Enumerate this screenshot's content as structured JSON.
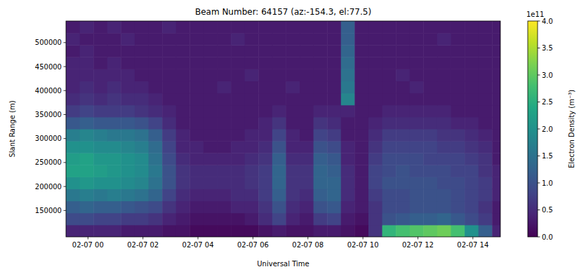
{
  "chart_data": {
    "type": "heatmap",
    "title": "Beam Number: 64157 (az:-154.3, el:77.5)",
    "x_label": "Universal Time",
    "y_label": "Slant Range (m)",
    "colorbar_label": "Electron Density (m⁻³)",
    "colorbar_offset": "1e11",
    "x_edges": [
      -0.8,
      -0.3,
      0.2,
      0.7,
      1.2,
      1.7,
      2.2,
      2.7,
      3.2,
      3.7,
      4.2,
      4.7,
      5.2,
      5.7,
      6.2,
      6.7,
      7.2,
      7.7,
      8.2,
      8.7,
      9.2,
      9.7,
      10.2,
      10.7,
      11.2,
      11.7,
      12.2,
      12.7,
      13.2,
      13.7,
      14.2,
      14.7,
      15.2
    ],
    "y_edges": [
      95000,
      120000,
      145000,
      170000,
      195000,
      220000,
      245000,
      270000,
      295000,
      320000,
      345000,
      370000,
      395000,
      420000,
      445000,
      470000,
      495000,
      520000,
      545000
    ],
    "cells": [
      [
        0.4,
        0.4,
        0.4,
        0.4,
        0.3,
        0.3,
        0.3,
        0.2,
        0.2,
        0.1,
        0.1,
        0.1,
        0.1,
        0.1,
        0.2,
        0.3,
        0.2,
        0.2,
        0.3,
        0.3,
        0.2,
        0.1,
        0.6,
        2.6,
        2.8,
        2.9,
        3.0,
        3.1,
        2.8,
        2.0,
        1.2,
        0.4
      ],
      [
        0.9,
        0.9,
        0.8,
        0.8,
        0.7,
        0.7,
        0.6,
        0.4,
        0.3,
        0.2,
        0.2,
        0.2,
        0.2,
        0.3,
        0.5,
        0.8,
        0.4,
        0.3,
        0.7,
        0.8,
        0.3,
        0.2,
        0.6,
        1.0,
        1.1,
        1.2,
        1.2,
        1.3,
        1.1,
        0.9,
        0.7,
        0.3
      ],
      [
        1.2,
        1.3,
        1.2,
        1.2,
        1.1,
        1.0,
        0.9,
        0.6,
        0.4,
        0.3,
        0.3,
        0.3,
        0.4,
        0.4,
        0.6,
        1.0,
        0.5,
        0.4,
        1.0,
        1.1,
        0.4,
        0.3,
        0.6,
        0.9,
        0.9,
        1.0,
        1.0,
        1.0,
        0.9,
        0.8,
        0.6,
        0.3
      ],
      [
        1.6,
        1.7,
        1.6,
        1.7,
        1.6,
        1.5,
        1.3,
        0.8,
        0.5,
        0.4,
        0.4,
        0.4,
        0.5,
        0.5,
        0.7,
        1.2,
        0.6,
        0.5,
        1.2,
        1.3,
        0.5,
        0.3,
        0.7,
        0.9,
        0.9,
        1.0,
        1.0,
        1.0,
        0.9,
        0.8,
        0.7,
        0.4
      ],
      [
        2.0,
        2.1,
        2.0,
        2.0,
        1.9,
        1.8,
        1.5,
        1.0,
        0.6,
        0.5,
        0.5,
        0.5,
        0.5,
        0.6,
        0.7,
        1.3,
        0.6,
        0.6,
        1.3,
        1.3,
        0.5,
        0.3,
        0.8,
        1.0,
        1.0,
        1.0,
        1.0,
        0.9,
        0.9,
        0.8,
        0.7,
        0.4
      ],
      [
        2.3,
        2.3,
        2.2,
        2.1,
        2.0,
        1.9,
        1.6,
        1.0,
        0.6,
        0.5,
        0.5,
        0.5,
        0.5,
        0.6,
        0.7,
        1.3,
        0.6,
        0.6,
        1.3,
        1.2,
        0.5,
        0.3,
        0.8,
        0.9,
        1.0,
        0.9,
        0.9,
        0.9,
        0.8,
        0.8,
        0.6,
        0.4
      ],
      [
        2.2,
        2.3,
        2.1,
        2.1,
        2.0,
        1.9,
        1.5,
        0.9,
        0.5,
        0.4,
        0.4,
        0.4,
        0.4,
        0.5,
        0.6,
        1.2,
        0.5,
        0.5,
        1.2,
        1.1,
        0.4,
        0.3,
        0.7,
        0.9,
        0.9,
        0.9,
        0.8,
        0.8,
        0.8,
        0.7,
        0.6,
        0.3
      ],
      [
        2.0,
        2.0,
        1.9,
        1.9,
        1.8,
        1.7,
        1.4,
        0.8,
        0.4,
        0.4,
        0.3,
        0.3,
        0.4,
        0.4,
        0.5,
        1.0,
        0.4,
        0.4,
        1.0,
        0.9,
        0.4,
        0.3,
        0.6,
        0.8,
        0.8,
        0.8,
        0.8,
        0.7,
        0.7,
        0.6,
        0.5,
        0.3
      ],
      [
        1.7,
        1.8,
        1.7,
        1.6,
        1.6,
        1.5,
        1.2,
        0.7,
        0.4,
        0.3,
        0.3,
        0.3,
        0.3,
        0.4,
        0.4,
        0.8,
        0.4,
        0.3,
        0.8,
        0.7,
        0.3,
        0.3,
        0.5,
        0.7,
        0.7,
        0.7,
        0.7,
        0.6,
        0.6,
        0.5,
        0.4,
        0.3
      ],
      [
        1.1,
        1.2,
        1.1,
        1.1,
        1.1,
        1.0,
        0.8,
        0.5,
        0.3,
        0.3,
        0.3,
        0.3,
        0.3,
        0.3,
        0.4,
        0.6,
        0.3,
        0.3,
        0.6,
        0.5,
        0.3,
        0.3,
        0.4,
        0.5,
        0.5,
        0.5,
        0.5,
        0.5,
        0.4,
        0.4,
        0.3,
        0.3
      ],
      [
        0.7,
        0.8,
        0.7,
        0.7,
        0.7,
        0.6,
        0.5,
        0.4,
        0.3,
        0.3,
        0.3,
        0.3,
        0.3,
        0.3,
        0.3,
        0.4,
        0.3,
        0.3,
        0.4,
        0.4,
        0.4,
        0.3,
        0.3,
        0.4,
        0.4,
        0.4,
        0.4,
        0.4,
        0.3,
        0.3,
        0.3,
        0.3
      ],
      [
        0.5,
        0.6,
        0.5,
        0.6,
        0.5,
        0.5,
        0.4,
        0.3,
        0.3,
        0.3,
        0.3,
        0.3,
        0.3,
        0.3,
        0.3,
        0.3,
        0.3,
        0.3,
        0.3,
        0.3,
        1.8,
        0.3,
        0.3,
        0.3,
        0.3,
        0.3,
        0.3,
        0.3,
        0.3,
        0.3,
        0.3,
        0.3
      ],
      [
        0.4,
        0.5,
        0.4,
        0.5,
        0.4,
        0.4,
        0.3,
        0.3,
        0.3,
        0.3,
        0.3,
        0.4,
        0.3,
        0.3,
        0.3,
        0.3,
        0.4,
        0.3,
        0.3,
        0.3,
        1.6,
        0.3,
        0.3,
        0.3,
        0.3,
        0.4,
        0.3,
        0.3,
        0.3,
        0.3,
        0.3,
        0.3
      ],
      [
        0.4,
        0.4,
        0.4,
        0.4,
        0.4,
        0.3,
        0.3,
        0.3,
        0.3,
        0.3,
        0.3,
        0.3,
        0.3,
        0.4,
        0.3,
        0.3,
        0.3,
        0.3,
        0.3,
        0.3,
        1.5,
        0.3,
        0.3,
        0.3,
        0.4,
        0.3,
        0.3,
        0.3,
        0.3,
        0.3,
        0.3,
        0.3
      ],
      [
        0.4,
        0.4,
        0.3,
        0.4,
        0.3,
        0.3,
        0.3,
        0.3,
        0.3,
        0.3,
        0.3,
        0.3,
        0.3,
        0.3,
        0.3,
        0.3,
        0.3,
        0.3,
        0.3,
        0.3,
        1.4,
        0.3,
        0.3,
        0.3,
        0.3,
        0.3,
        0.3,
        0.3,
        0.3,
        0.3,
        0.3,
        0.3
      ],
      [
        0.3,
        0.4,
        0.3,
        0.3,
        0.3,
        0.3,
        0.3,
        0.3,
        0.3,
        0.3,
        0.3,
        0.3,
        0.3,
        0.3,
        0.3,
        0.3,
        0.3,
        0.3,
        0.3,
        0.3,
        1.3,
        0.3,
        0.3,
        0.3,
        0.3,
        0.3,
        0.3,
        0.3,
        0.3,
        0.3,
        0.3,
        0.3
      ],
      [
        0.4,
        0.3,
        0.3,
        0.3,
        0.4,
        0.3,
        0.3,
        0.3,
        0.3,
        0.3,
        0.3,
        0.3,
        0.4,
        0.3,
        0.3,
        0.3,
        0.3,
        0.3,
        0.3,
        0.3,
        1.2,
        0.3,
        0.3,
        0.3,
        0.3,
        0.3,
        0.3,
        0.4,
        0.3,
        0.3,
        0.3,
        0.3
      ],
      [
        0.3,
        0.4,
        0.3,
        0.4,
        0.3,
        0.3,
        0.3,
        0.4,
        0.3,
        0.3,
        0.3,
        0.3,
        0.3,
        0.3,
        0.3,
        0.3,
        0.3,
        0.3,
        0.3,
        0.3,
        1.2,
        0.3,
        0.3,
        0.3,
        0.3,
        0.3,
        0.3,
        0.3,
        0.3,
        0.3,
        0.3,
        0.3
      ]
    ],
    "xlim": [
      -0.8,
      15.0
    ],
    "ylim": [
      95000,
      545000
    ],
    "xticks": [
      {
        "value": 0,
        "label": "02-07 00"
      },
      {
        "value": 2,
        "label": "02-07 02"
      },
      {
        "value": 4,
        "label": "02-07 04"
      },
      {
        "value": 6,
        "label": "02-07 06"
      },
      {
        "value": 8,
        "label": "02-07 08"
      },
      {
        "value": 10,
        "label": "02-07 10"
      },
      {
        "value": 12,
        "label": "02-07 12"
      },
      {
        "value": 14,
        "label": "02-07 14"
      }
    ],
    "yticks": [
      150000,
      200000,
      250000,
      300000,
      350000,
      400000,
      450000,
      500000
    ],
    "colorbar_range": [
      0,
      4
    ],
    "colorbar_ticks": [
      {
        "value": 0,
        "label": "0.0"
      },
      {
        "value": 0.5,
        "label": "0.5"
      },
      {
        "value": 1,
        "label": "1.0"
      },
      {
        "value": 1.5,
        "label": "1.5"
      },
      {
        "value": 2,
        "label": "2.0"
      },
      {
        "value": 2.5,
        "label": "2.5"
      },
      {
        "value": 3,
        "label": "3.0"
      },
      {
        "value": 3.5,
        "label": "3.5"
      },
      {
        "value": 4,
        "label": "4.0"
      }
    ]
  }
}
